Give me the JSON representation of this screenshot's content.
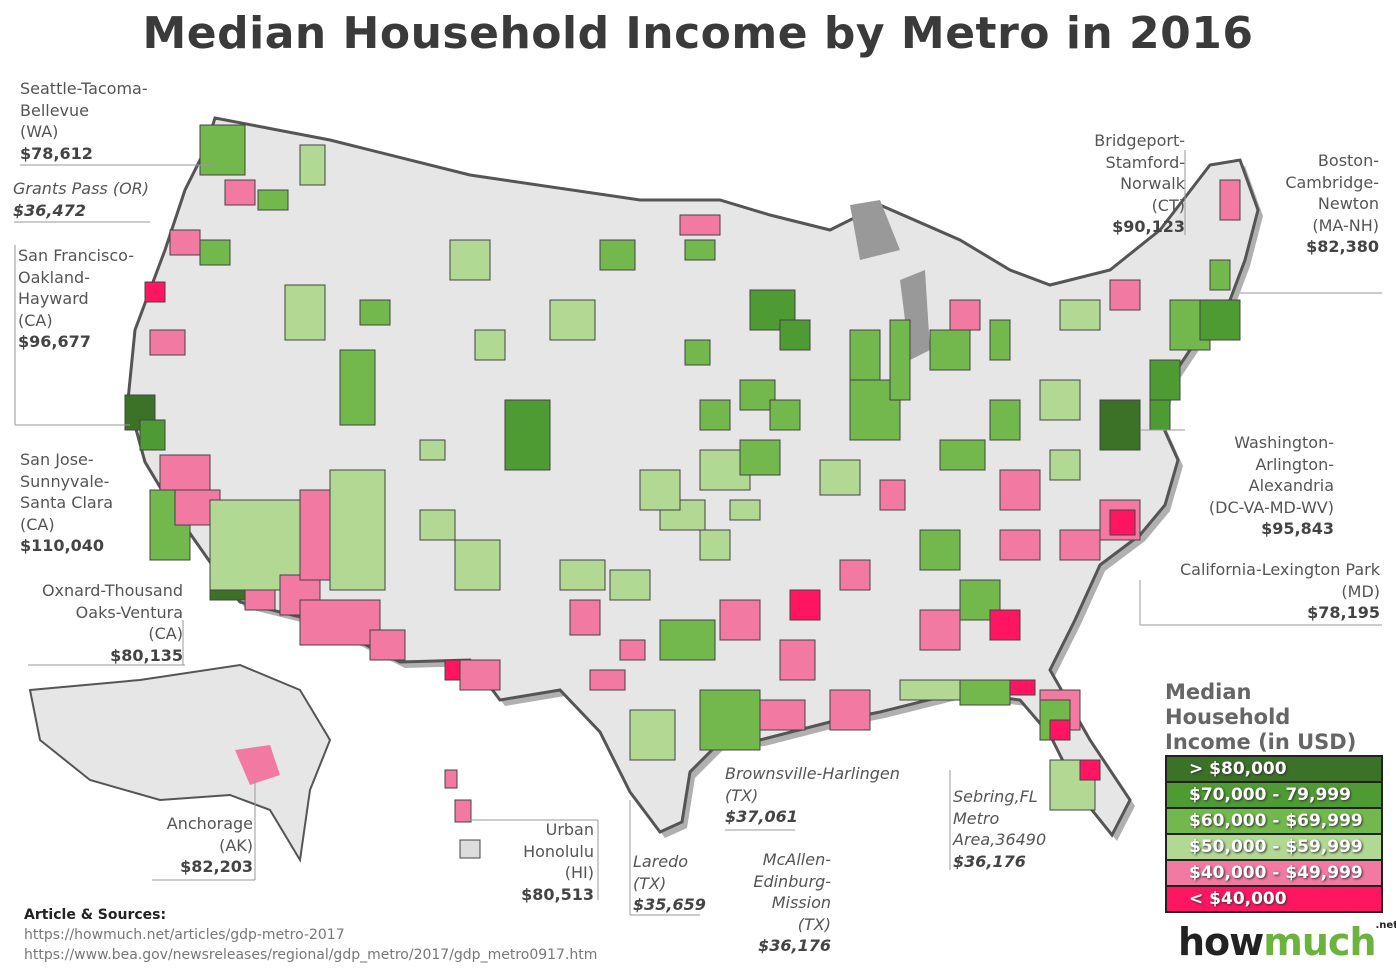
{
  "title": "Median Household Income by Metro in 2016",
  "legend": {
    "title": "Median Household Income (in USD)",
    "items": [
      {
        "label": "> $80,000",
        "color": "#3b7228"
      },
      {
        "label": "$70,000 - 79,999",
        "color": "#4e9a33"
      },
      {
        "label": "$60,000 - $69,999",
        "color": "#72b84c"
      },
      {
        "label": "$50,000 - $59,999",
        "color": "#b2d993"
      },
      {
        "label": "$40,000 - $49,999",
        "color": "#f27aa2"
      },
      {
        "label": "< $40,000",
        "color": "#ff1562"
      }
    ]
  },
  "annotations": [
    {
      "lines": "Seattle-Tacoma-\nBellevue\n(WA)",
      "value": "$78,612"
    },
    {
      "lines": "Grants Pass (OR)",
      "value": "$36,472"
    },
    {
      "lines": "San Francisco-\nOakland-\nHayward\n(CA)",
      "value": "$96,677"
    },
    {
      "lines": "San Jose-\nSunnyvale-\nSanta Clara\n(CA)",
      "value": "$110,040"
    },
    {
      "lines": "Oxnard-Thousand\nOaks-Ventura\n(CA)",
      "value": "$80,135"
    },
    {
      "lines": "Anchorage\n(AK)",
      "value": "$82,203"
    },
    {
      "lines": "Urban\nHonolulu\n(HI)",
      "value": "$80,513"
    },
    {
      "lines": "Laredo\n(TX)",
      "value": "$35,659"
    },
    {
      "lines": "McAllen-\nEdinburg-\nMission\n(TX)",
      "value": "$36,176"
    },
    {
      "lines": "Brownsville-Harlingen\n(TX)",
      "value": "$37,061"
    },
    {
      "lines": "Sebring,FL\nMetro\nArea,36490",
      "value": "$36,176"
    },
    {
      "lines": "Bridgeport-\nStamford-\nNorwalk\n(CT)",
      "value": "$90,123"
    },
    {
      "lines": "Boston-\nCambridge-\nNewton\n(MA-NH)",
      "value": "$82,380"
    },
    {
      "lines": "Washington-\nArlington-\nAlexandria\n(DC-VA-MD-WV)",
      "value": "$95,843"
    },
    {
      "lines": "California-Lexington Park\n(MD)",
      "value": "$78,195"
    }
  ],
  "sources": {
    "heading": "Article & Sources:",
    "links": [
      "https://howmuch.net/articles/gdp-metro-2017",
      "https://www.bea.gov/newsreleases/regional/gdp_metro/2017/gdp_metro0917.htm"
    ]
  },
  "logo": {
    "part1": "how",
    "part2": "much",
    "suffix": ".net"
  }
}
